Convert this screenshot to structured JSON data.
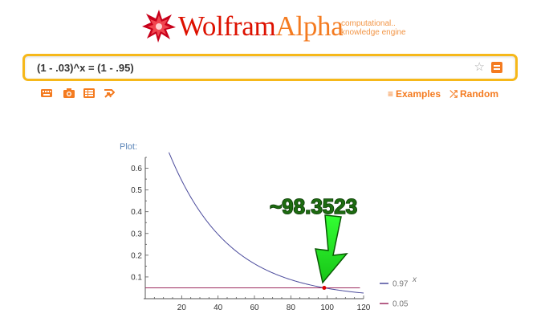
{
  "logo": {
    "wordmark_1": "Wolfram",
    "wordmark_2": "Alpha",
    "tagline_1": "computational..",
    "tagline_2": "knowledge engine"
  },
  "search": {
    "query": "(1 - .03)^x = (1 - .95)",
    "favorite_icon": "star-outline-icon",
    "go_icon": "equals-icon"
  },
  "tools": [
    {
      "name": "keyboard-icon"
    },
    {
      "name": "camera-icon"
    },
    {
      "name": "data-input-icon"
    },
    {
      "name": "random-input-icon"
    }
  ],
  "links": {
    "examples": "Examples",
    "random": "Random"
  },
  "pod": {
    "title": "Plot:"
  },
  "annotation": {
    "text": "~98.3523",
    "arrow_color": "#33ff33"
  },
  "chart_data": {
    "type": "line",
    "title": "",
    "xlabel": "",
    "ylabel": "",
    "xlim": [
      0,
      120
    ],
    "ylim": [
      0,
      0.65
    ],
    "x_ticks": [
      20,
      40,
      60,
      80,
      100,
      120
    ],
    "y_ticks": [
      0.1,
      0.2,
      0.3,
      0.4,
      0.5,
      0.6
    ],
    "series": [
      {
        "name": "0.97",
        "name_superscript": "x",
        "function": "0.97^x",
        "x_range": [
          13,
          120
        ],
        "color": "#4b4b9c"
      },
      {
        "name": "0.05",
        "function": "0.05",
        "x_range": [
          0,
          118
        ],
        "color": "#9c2b5f"
      }
    ],
    "intersection": {
      "x": 98.3523,
      "y": 0.05,
      "color": "#dd0000"
    }
  }
}
